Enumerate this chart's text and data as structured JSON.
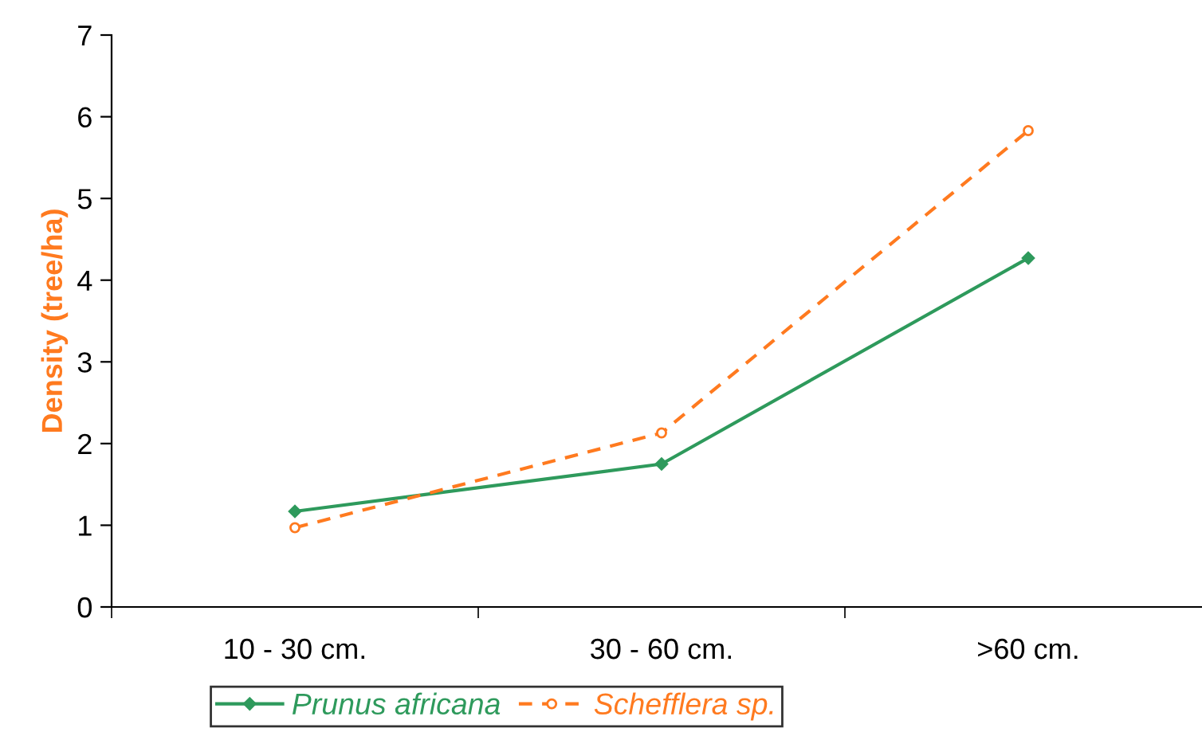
{
  "chart_data": {
    "type": "line",
    "ylabel": "Density (tree/ha)",
    "categories": [
      "10 - 30 cm.",
      "30 - 60 cm.",
      ">60 cm."
    ],
    "series": [
      {
        "name": "Prunus africana",
        "color": "#2e9a5c",
        "values": [
          1.17,
          1.75,
          4.27
        ],
        "marker": "diamond",
        "line_style": "solid"
      },
      {
        "name": "Schefflera sp.",
        "color": "#ff7a1f",
        "values": [
          0.97,
          2.13,
          5.83
        ],
        "marker": "circle",
        "line_style": "dashed"
      }
    ],
    "ylim": [
      0,
      7
    ],
    "yticks": [
      0,
      1,
      2,
      3,
      4,
      5,
      6,
      7
    ],
    "grid": false,
    "legend": "bottom"
  }
}
